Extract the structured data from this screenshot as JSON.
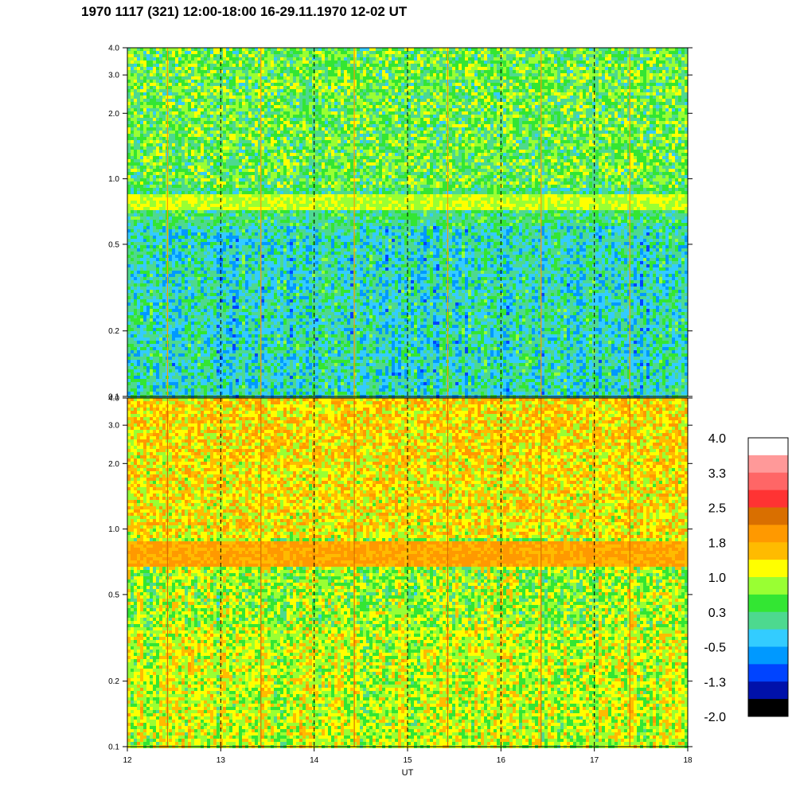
{
  "title": "1970 1117 (321) 12:00-18:00 16-29.11.1970  12-02 UT",
  "chart_data": {
    "type": "heatmap",
    "xlabel": "UT",
    "xlim": [
      12,
      18
    ],
    "x_ticks": [
      "12",
      "13",
      "14",
      "15",
      "16",
      "17",
      "18"
    ],
    "dashed_gridlines_x": [
      13,
      14,
      15,
      16,
      17
    ],
    "y_scale": "log",
    "panels": [
      {
        "ylim": [
          0.1,
          4.0
        ],
        "y_ticks": [
          "0.1",
          "0.2",
          "0.5",
          "1.0",
          "2.0",
          "3.0",
          "4.0"
        ],
        "band_level": 1.0,
        "band_freq": [
          0.72,
          0.86
        ]
      },
      {
        "ylim": [
          0.1,
          4.0
        ],
        "y_ticks": [
          "0.1",
          "0.2",
          "0.5",
          "1.0",
          "2.0",
          "3.0",
          "4.0"
        ],
        "band_level": 1.8,
        "band_freq": [
          0.68,
          0.88
        ]
      }
    ],
    "colorbar": {
      "tick_labels": [
        "4.0",
        "3.3",
        "2.5",
        "1.8",
        "1.0",
        "0.3",
        "-0.5",
        "-1.3",
        "-2.0"
      ],
      "range": [
        -2.0,
        4.0
      ],
      "colors": [
        "#ffffff",
        "#ff9999",
        "#ff6666",
        "#ff3333",
        "#d96f00",
        "#ff9900",
        "#ffbb00",
        "#ffff00",
        "#99ff33",
        "#33e633",
        "#4dd98f",
        "#33ccff",
        "#0099ff",
        "#0044ff",
        "#0011aa",
        "#000000"
      ]
    }
  }
}
